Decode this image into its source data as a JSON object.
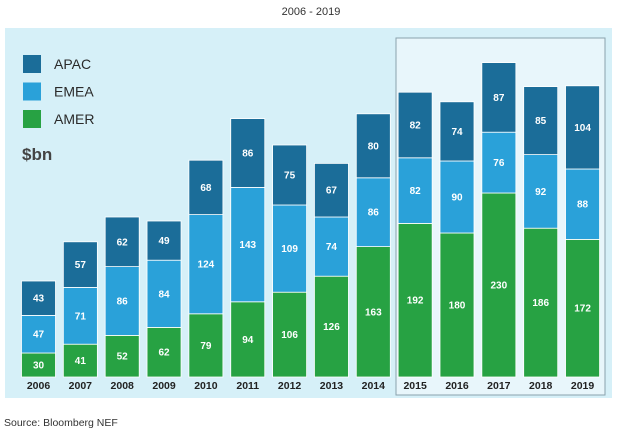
{
  "chart_data": {
    "type": "bar",
    "stacked": true,
    "title": "2006 - 2019",
    "unit_label": "$bn",
    "source": "Source: Bloomberg NEF",
    "categories": [
      "2006",
      "2007",
      "2008",
      "2009",
      "2010",
      "2011",
      "2012",
      "2013",
      "2014",
      "2015",
      "2016",
      "2017",
      "2018",
      "2019"
    ],
    "series": [
      {
        "name": "AMER",
        "color": "#27a243",
        "values": [
          30,
          41,
          52,
          62,
          79,
          94,
          106,
          126,
          163,
          192,
          180,
          230,
          186,
          172
        ]
      },
      {
        "name": "EMEA",
        "color": "#2aa1d9",
        "values": [
          47,
          71,
          86,
          84,
          124,
          143,
          109,
          74,
          86,
          82,
          90,
          76,
          92,
          88
        ]
      },
      {
        "name": "APAC",
        "color": "#1b6d99",
        "values": [
          43,
          57,
          62,
          49,
          68,
          86,
          75,
          67,
          80,
          82,
          74,
          87,
          85,
          104
        ]
      }
    ],
    "legend_order": [
      "APAC",
      "EMEA",
      "AMER"
    ],
    "legend_position": "top-left",
    "ylim": [
      0,
      420
    ],
    "grid": false,
    "highlighted_range": [
      "2015",
      "2019"
    ],
    "background_color": "#d6f0f8",
    "highlight_color": "#e8f6fb"
  }
}
